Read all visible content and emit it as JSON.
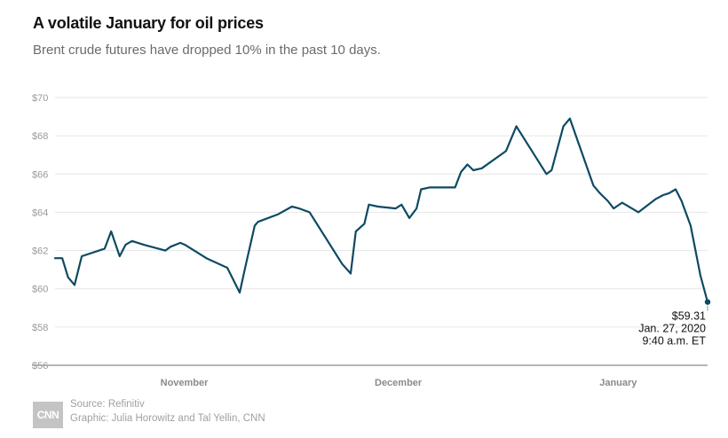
{
  "title": "A volatile January for oil prices",
  "subtitle": "Brent crude futures have dropped 10% in the past 10 days.",
  "source": "Source: Refinitiv",
  "credit": "Graphic: Julia Horowitz and Tal Yellin, CNN",
  "logo_text": "CNN",
  "colors": {
    "line": "#0e4a63",
    "grid": "#e6e6e6",
    "axis": "#9e9e9e"
  },
  "chart_data": {
    "type": "line",
    "title": "A volatile January for oil prices",
    "subtitle": "Brent crude futures have dropped 10% in the past 10 days.",
    "ylabel": "",
    "xlabel": "",
    "ylim": [
      56,
      70
    ],
    "xlim": [
      0,
      100
    ],
    "yticks": [
      56,
      58,
      60,
      62,
      64,
      66,
      68,
      70
    ],
    "ytick_labels": [
      "$56",
      "$58",
      "$60",
      "$62",
      "$64",
      "$66",
      "$68",
      "$70"
    ],
    "xtick_positions": [
      19.8,
      52.6,
      86.3
    ],
    "xtick_labels": [
      "November",
      "December",
      "January"
    ],
    "grid": true,
    "series": [
      {
        "name": "Brent crude futures",
        "x": [
          0,
          1.1,
          2.0,
          3.0,
          4.1,
          7.6,
          8.6,
          9.9,
          10.8,
          11.8,
          13.6,
          16.9,
          17.7,
          19.2,
          19.9,
          23.2,
          26.4,
          28.3,
          29.2,
          30.6,
          31.1,
          34.2,
          36.3,
          37.4,
          39.0,
          44.0,
          45.3,
          46.1,
          47.4,
          48.1,
          49.5,
          52.2,
          53.1,
          54.3,
          55.4,
          56.1,
          57.4,
          61.3,
          62.2,
          63.2,
          64.1,
          65.4,
          69.1,
          70.7,
          75.3,
          76.1,
          77.9,
          78.9,
          82.5,
          83.5,
          84.7,
          85.6,
          86.9,
          89.4,
          92.1,
          93.2,
          94.1,
          95.1,
          96.0,
          97.4,
          98.9,
          100
        ],
        "values": [
          61.6,
          61.6,
          60.6,
          60.2,
          61.7,
          62.1,
          63.0,
          61.7,
          62.3,
          62.5,
          62.3,
          62.0,
          62.2,
          62.4,
          62.3,
          61.6,
          61.1,
          59.8,
          61.2,
          63.3,
          63.5,
          63.9,
          64.3,
          64.2,
          64.0,
          61.3,
          60.8,
          63.0,
          63.4,
          64.4,
          64.3,
          64.2,
          64.4,
          63.7,
          64.2,
          65.2,
          65.3,
          65.3,
          66.1,
          66.5,
          66.2,
          66.3,
          67.2,
          68.5,
          66.0,
          66.2,
          68.5,
          68.9,
          65.4,
          65.0,
          64.6,
          64.2,
          64.5,
          64.0,
          64.7,
          64.9,
          65.0,
          65.2,
          64.6,
          63.3,
          60.7,
          59.31
        ]
      }
    ],
    "annotation": {
      "value_label": "$59.31",
      "date_label": "Jan. 27, 2020",
      "time_label": "9:40 a.m. ET"
    }
  }
}
